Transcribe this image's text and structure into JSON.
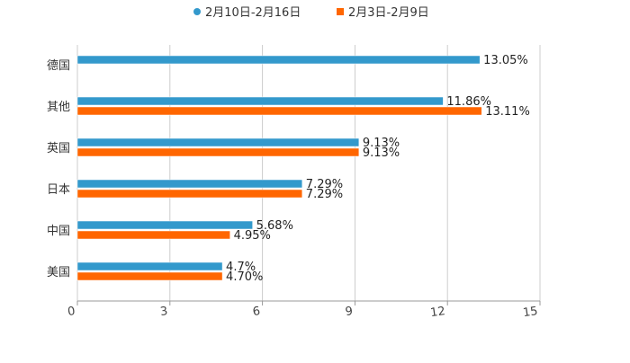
{
  "chart_data": {
    "type": "bar",
    "orientation": "horizontal",
    "title": "",
    "xlabel": "",
    "ylabel": "",
    "categories": [
      "德国",
      "其他",
      "英国",
      "日本",
      "中国",
      "美国"
    ],
    "series": [
      {
        "name": "2月10日-2月16日",
        "color": "#3399cc",
        "values": [
          13.05,
          11.86,
          9.13,
          7.29,
          5.68,
          4.7
        ],
        "labels": [
          "13.05%",
          "11.86%",
          "9.13%",
          "7.29%",
          "5.68%",
          "4.7%"
        ]
      },
      {
        "name": "2月3日-2月9日",
        "color": "#ff6600",
        "values": [
          null,
          13.11,
          9.13,
          7.29,
          4.95,
          4.7
        ],
        "labels": [
          null,
          "13.11%",
          "9.13%",
          "7.29%",
          "4.95%",
          "4.70%"
        ]
      }
    ],
    "xlim": [
      0,
      15
    ],
    "xticks": [
      "0",
      "3",
      "6",
      "9",
      "12",
      "15"
    ],
    "grid": true,
    "legend_position": "top-center"
  }
}
